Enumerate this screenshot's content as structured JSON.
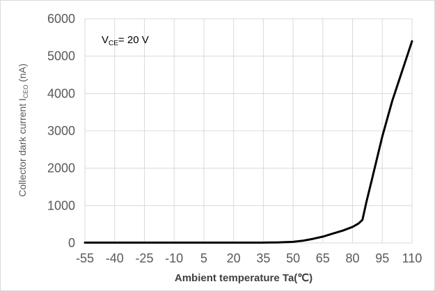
{
  "chart_data": {
    "type": "line",
    "xlabel": "Ambient temperature Ta(℃)",
    "ylabel": {
      "pre": "Collector dark current I",
      "sub": "CEO",
      "post": " (nA)"
    },
    "annotation": {
      "main": "V",
      "sub": "CE",
      "post": "= 20 V"
    },
    "x_ticks": [
      -55,
      -40,
      -25,
      -10,
      5,
      20,
      35,
      50,
      65,
      80,
      95,
      110
    ],
    "y_ticks": [
      0,
      1000,
      2000,
      3000,
      4000,
      5000,
      6000
    ],
    "x_tick_labels": [
      "-55",
      "-40",
      "-25",
      "-10",
      "5",
      "20",
      "35",
      "50",
      "65",
      "80",
      "95",
      "110"
    ],
    "y_tick_labels": [
      "0",
      "1000",
      "2000",
      "3000",
      "4000",
      "5000",
      "6000"
    ],
    "xlim": [
      -55,
      110
    ],
    "ylim": [
      0,
      6000
    ],
    "grid": true,
    "series": [
      {
        "color": "#000000",
        "x": [
          -55,
          -40,
          -25,
          -10,
          5,
          20,
          35,
          42,
          50,
          55,
          60,
          65,
          70,
          75,
          80,
          83,
          85,
          87,
          90,
          95,
          100,
          105,
          110
        ],
        "y": [
          10,
          10,
          10,
          10,
          10,
          10,
          10,
          15,
          30,
          60,
          110,
          170,
          250,
          330,
          430,
          520,
          620,
          1100,
          1750,
          2850,
          3800,
          4600,
          5400
        ]
      }
    ]
  }
}
